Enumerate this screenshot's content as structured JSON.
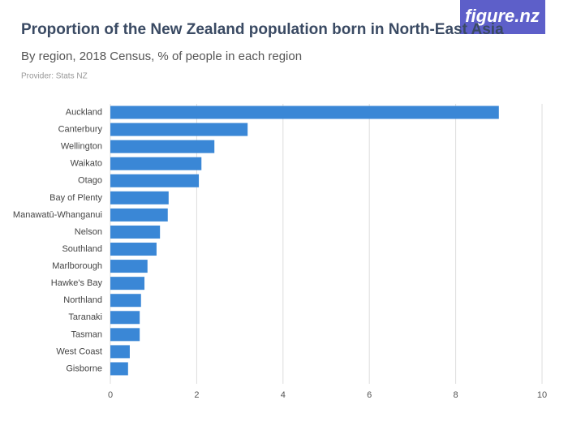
{
  "logo": "figure.nz",
  "chart_data": {
    "type": "bar",
    "orientation": "horizontal",
    "title": "Proportion of the New Zealand population born in North-East Asia",
    "subtitle": "By region, 2018 Census, % of people in each region",
    "provider": "Provider: Stats NZ",
    "categories": [
      "Auckland",
      "Canterbury",
      "Wellington",
      "Waikato",
      "Otago",
      "Bay of Plenty",
      "Manawatū-Whanganui",
      "Nelson",
      "Southland",
      "Marlborough",
      "Hawke's Bay",
      "Northland",
      "Taranaki",
      "Tasman",
      "West Coast",
      "Gisborne"
    ],
    "values": [
      9.0,
      3.18,
      2.41,
      2.11,
      2.05,
      1.35,
      1.33,
      1.15,
      1.07,
      0.86,
      0.79,
      0.71,
      0.68,
      0.68,
      0.45,
      0.41
    ],
    "color": "#3a87d6",
    "xlim": [
      0,
      10
    ],
    "xticks": [
      0,
      2,
      4,
      6,
      8,
      10
    ],
    "grid": true
  }
}
